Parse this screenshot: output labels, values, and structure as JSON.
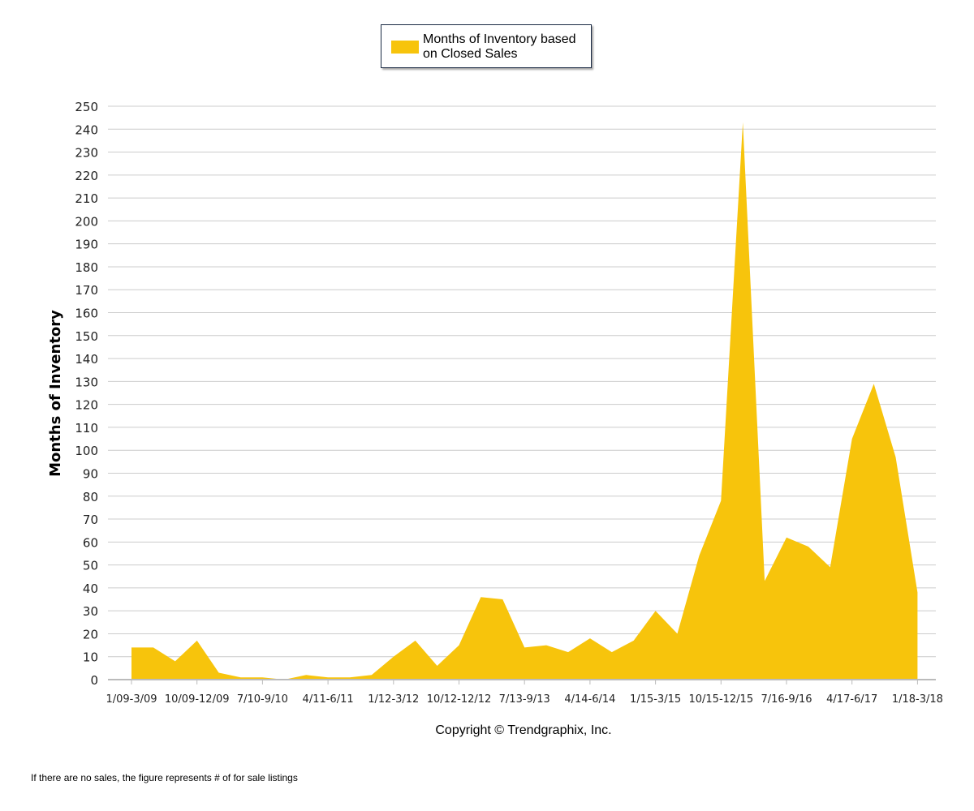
{
  "legend": {
    "label_line1": "Months of Inventory based",
    "label_line2": "on Closed Sales"
  },
  "copyright": "Copyright © Trendgraphix, Inc.",
  "footnote": "If there are no sales, the figure represents # of for sale listings",
  "colors": {
    "fill": "#f7c40c",
    "grid": "#cccccc",
    "axis": "#bbbbbb"
  },
  "chart_data": {
    "type": "area",
    "title": "",
    "xlabel": "",
    "ylabel": "Months of Inventory",
    "ylim": [
      0,
      250
    ],
    "y_ticks": [
      0,
      10,
      20,
      30,
      40,
      50,
      60,
      70,
      80,
      90,
      100,
      110,
      120,
      130,
      140,
      150,
      160,
      170,
      180,
      190,
      200,
      210,
      220,
      230,
      240,
      250
    ],
    "grid": true,
    "legend_position": "top-center",
    "x_tick_labels": [
      "1/09-3/09",
      "10/09-12/09",
      "7/10-9/10",
      "4/11-6/11",
      "1/12-3/12",
      "10/12-12/12",
      "7/13-9/13",
      "4/14-6/14",
      "1/15-3/15",
      "10/15-12/15",
      "7/16-9/16",
      "4/17-6/17",
      "1/18-3/18"
    ],
    "series": [
      {
        "name": "Months of Inventory based on Closed Sales",
        "values": [
          14,
          14,
          8,
          17,
          3,
          1,
          1,
          0,
          2,
          1,
          1,
          2,
          10,
          17,
          6,
          15,
          36,
          35,
          14,
          15,
          12,
          18,
          12,
          17,
          30,
          20,
          54,
          78,
          243,
          43,
          62,
          58,
          49,
          105,
          129,
          97,
          38
        ]
      }
    ]
  }
}
